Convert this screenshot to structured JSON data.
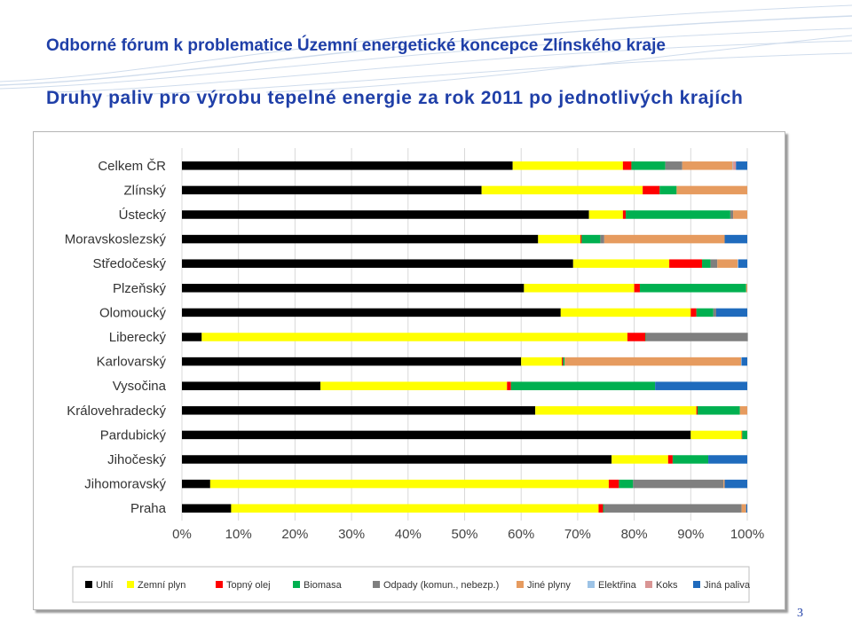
{
  "header": {
    "forum_title": "Odborné fórum k problematice Územní energetické koncepce Zlínského kraje",
    "slide_title": "Druhy paliv pro výrobu tepelné energie za rok 2011 po jednotlivých krajích"
  },
  "page_number": "3",
  "colors": {
    "title": "#1f3fa8"
  },
  "chart_data": {
    "type": "bar",
    "orientation": "horizontal",
    "stacked": "percent",
    "categories": [
      "Celkem ČR",
      "Zlínský",
      "Ústecký",
      "Moravskoslezský",
      "Středočeský",
      "Plzeňský",
      "Olomoucký",
      "Liberecký",
      "Karlovarský",
      "Vysočina",
      "Královehradecký",
      "Pardubický",
      "Jihočeský",
      "Jihomoravský",
      "Praha"
    ],
    "x_ticks": [
      "0%",
      "10%",
      "20%",
      "30%",
      "40%",
      "50%",
      "60%",
      "70%",
      "80%",
      "90%",
      "100%"
    ],
    "xlim": [
      0,
      100
    ],
    "grid": true,
    "legend_position": "bottom",
    "series": [
      {
        "name": "Uhlí",
        "color": "#000000",
        "values": [
          58.5,
          53,
          72,
          63,
          69.2,
          60.5,
          67,
          3.5,
          60,
          24.5,
          62.5,
          90,
          76,
          5,
          8.7
        ]
      },
      {
        "name": "Zemní plyn",
        "color": "#ffff00",
        "values": [
          19.5,
          28.5,
          6,
          7.5,
          17,
          19.5,
          23,
          75.3,
          7.2,
          33,
          28.5,
          9,
          10,
          70.5,
          65
        ]
      },
      {
        "name": "Topný olej",
        "color": "#ff0000",
        "values": [
          1.5,
          3,
          0.5,
          0.2,
          5.8,
          1,
          1,
          3.2,
          0.2,
          0.7,
          0.2,
          0.1,
          0.8,
          1.8,
          0.8
        ]
      },
      {
        "name": "Biomasa",
        "color": "#00b050",
        "values": [
          6,
          3,
          18.5,
          3.3,
          1.5,
          18.8,
          3,
          0.1,
          0.3,
          25.5,
          7.5,
          0.9,
          6.3,
          2.5,
          0.2
        ]
      },
      {
        "name": "Odpady (komun., nebezp.)",
        "color": "#7f7f7f",
        "values": [
          3,
          0,
          0.5,
          0.7,
          1.2,
          0,
          0.5,
          18,
          0,
          0,
          0,
          0,
          0,
          16,
          24.3
        ]
      },
      {
        "name": "Jiné plyny",
        "color": "#e69b5f",
        "values": [
          8.9,
          12.5,
          2.5,
          21.3,
          3.6,
          0.2,
          0,
          0,
          31.2,
          0,
          1.3,
          0,
          0,
          0.2,
          0.8
        ]
      },
      {
        "name": "Elektřina",
        "color": "#9dc3e6",
        "values": [
          0.1,
          0,
          0,
          0,
          0.1,
          0,
          0,
          0,
          0.1,
          0,
          0,
          0,
          0,
          0,
          0
        ]
      },
      {
        "name": "Koks",
        "color": "#d99594",
        "values": [
          0.5,
          0,
          0,
          0,
          0,
          0,
          0,
          0,
          0,
          0,
          0,
          0,
          0,
          0,
          0
        ]
      },
      {
        "name": "Jiná paliva",
        "color": "#1f6bbd",
        "values": [
          2,
          0,
          0,
          4,
          1.6,
          0,
          5.5,
          0,
          1,
          16.3,
          0,
          0,
          6.9,
          4,
          0.2
        ]
      }
    ]
  }
}
